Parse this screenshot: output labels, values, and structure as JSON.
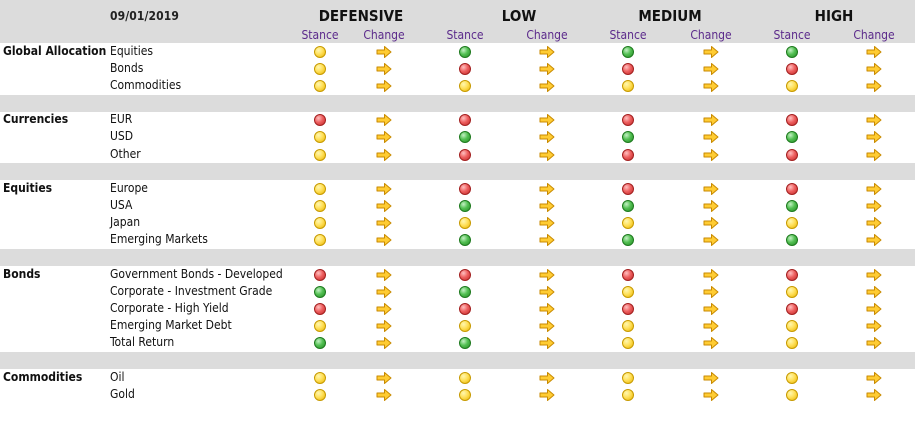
{
  "header": {
    "date": "09/01/2019",
    "stance_label": "Stance",
    "change_label": "Change",
    "profiles": [
      "DEFENSIVE",
      "LOW",
      "MEDIUM",
      "HIGH"
    ]
  },
  "colors": {
    "header_bg": "#dcdcdc",
    "subheader_text": "#5b2a8b",
    "yellow": "#ffd33d",
    "red": "#e05050",
    "green": "#3fae3f",
    "arrow_fill": "#ffcc33"
  },
  "icons": {
    "stance": "status-dot-icon",
    "change": "arrow-right-icon"
  },
  "sections": [
    {
      "category": "Global Allocation",
      "rows": [
        {
          "label": "Equities",
          "stances": [
            "yellow",
            "green",
            "green",
            "green"
          ]
        },
        {
          "label": "Bonds",
          "stances": [
            "yellow",
            "red",
            "red",
            "red"
          ]
        },
        {
          "label": "Commodities",
          "stances": [
            "yellow",
            "yellow",
            "yellow",
            "yellow"
          ]
        }
      ]
    },
    {
      "category": "Currencies",
      "rows": [
        {
          "label": "EUR",
          "stances": [
            "red",
            "red",
            "red",
            "red"
          ]
        },
        {
          "label": "USD",
          "stances": [
            "yellow",
            "green",
            "green",
            "green"
          ]
        },
        {
          "label": "Other",
          "stances": [
            "yellow",
            "red",
            "red",
            "red"
          ]
        }
      ]
    },
    {
      "category": "Equities",
      "rows": [
        {
          "label": "Europe",
          "stances": [
            "yellow",
            "red",
            "red",
            "red"
          ]
        },
        {
          "label": "USA",
          "stances": [
            "yellow",
            "green",
            "green",
            "green"
          ]
        },
        {
          "label": "Japan",
          "stances": [
            "yellow",
            "yellow",
            "yellow",
            "yellow"
          ]
        },
        {
          "label": "Emerging Markets",
          "stances": [
            "yellow",
            "green",
            "green",
            "green"
          ]
        }
      ]
    },
    {
      "category": "Bonds",
      "rows": [
        {
          "label": "Government Bonds - Developed",
          "stances": [
            "red",
            "red",
            "red",
            "red"
          ]
        },
        {
          "label": "Corporate - Investment Grade",
          "stances": [
            "green",
            "green",
            "yellow",
            "yellow"
          ]
        },
        {
          "label": "Corporate - High Yield",
          "stances": [
            "red",
            "red",
            "red",
            "red"
          ]
        },
        {
          "label": "Emerging Market Debt",
          "stances": [
            "yellow",
            "yellow",
            "yellow",
            "yellow"
          ]
        },
        {
          "label": "Total Return",
          "stances": [
            "green",
            "green",
            "yellow",
            "yellow"
          ]
        }
      ]
    },
    {
      "category": "Commodities",
      "rows": [
        {
          "label": "Oil",
          "stances": [
            "yellow",
            "yellow",
            "yellow",
            "yellow"
          ]
        },
        {
          "label": "Gold",
          "stances": [
            "yellow",
            "yellow",
            "yellow",
            "yellow"
          ]
        }
      ]
    }
  ]
}
